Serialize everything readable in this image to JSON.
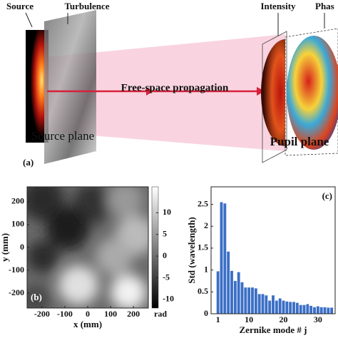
{
  "diagram": {
    "source": "Source",
    "turbulence": "Turbulence",
    "intensity": "Intensity",
    "phase": "Phas",
    "propagation": "Free-space propagation",
    "source_plane": "Source plane",
    "pupil_plane": "Pupil plane",
    "panel": "(a)"
  },
  "chart_data": [
    {
      "type": "image",
      "panel": "(b)",
      "xlabel": "x (mm)",
      "ylabel": "y (mm)",
      "xlim": [
        -265,
        265
      ],
      "ylim": [
        -265,
        265
      ],
      "xticks": [
        -200,
        -100,
        0,
        100,
        200
      ],
      "yticks": [
        -200,
        -100,
        0,
        100,
        200
      ],
      "colorbar_label": "rad",
      "colorbar_lim": [
        -12,
        16
      ],
      "colorbar_ticks": [
        -10,
        -5,
        0,
        5,
        10
      ]
    },
    {
      "type": "bar",
      "panel": "(c)",
      "xlabel": "Zernike mode # j",
      "ylabel": "Std (wavelength)",
      "color": "#3b6fc6",
      "xlim": [
        -1,
        35
      ],
      "ylim": [
        0,
        2.9
      ],
      "xticks": [
        1,
        10,
        20,
        30
      ],
      "yticks": [
        0,
        0.5,
        1,
        1.5,
        2,
        2.5
      ],
      "x": [
        1,
        2,
        3,
        4,
        5,
        6,
        7,
        8,
        9,
        10,
        11,
        12,
        13,
        14,
        15,
        16,
        17,
        18,
        19,
        20,
        21,
        22,
        23,
        24,
        25,
        26,
        27,
        28,
        29,
        30,
        31,
        32,
        33,
        34
      ],
      "values": [
        0.97,
        2.55,
        2.52,
        1.42,
        0.98,
        0.75,
        0.95,
        0.72,
        0.6,
        0.6,
        0.6,
        0.58,
        0.45,
        0.45,
        0.42,
        0.3,
        0.42,
        0.3,
        0.35,
        0.3,
        0.28,
        0.27,
        0.27,
        0.25,
        0.2,
        0.2,
        0.22,
        0.18,
        0.15,
        0.17,
        0.15,
        0.15,
        0.14,
        0.14
      ]
    }
  ]
}
